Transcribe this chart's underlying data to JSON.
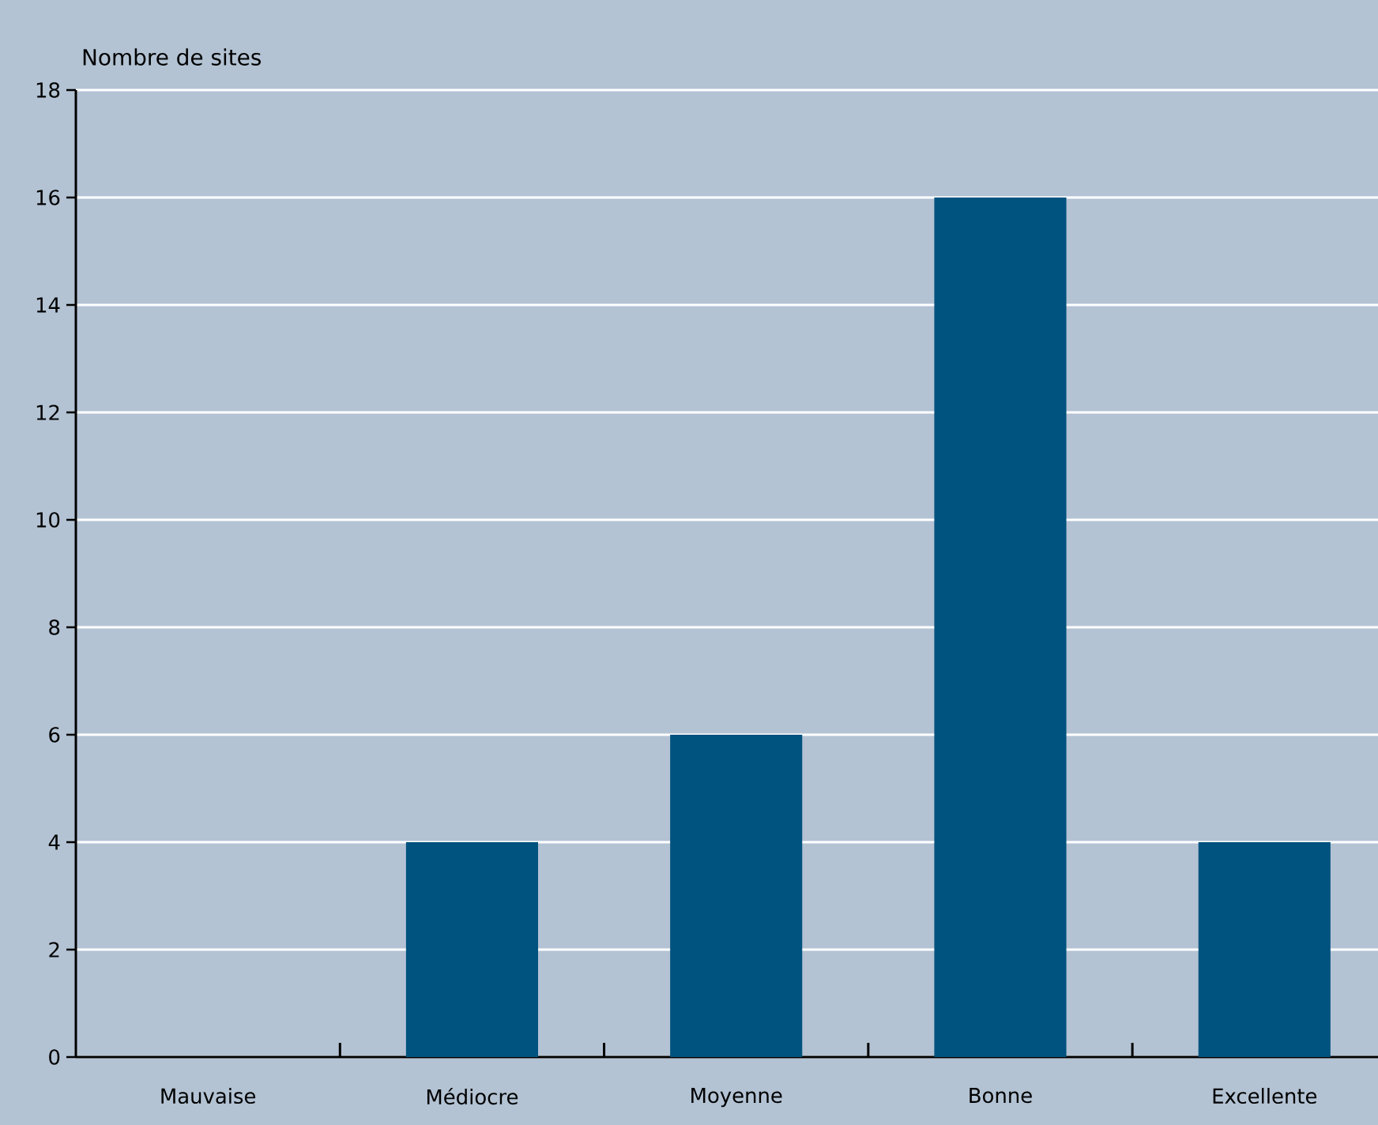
{
  "chart_data": {
    "type": "bar",
    "ylabel": "Nombre de sites",
    "categories": [
      "Mauvaise",
      "Médiocre",
      "Moyenne",
      "Bonne",
      "Excellente"
    ],
    "values": [
      0,
      4,
      6,
      16,
      4
    ],
    "color": "#00527f",
    "ylim": [
      0,
      18
    ],
    "yticks": [
      0,
      2,
      4,
      6,
      8,
      10,
      12,
      14,
      16,
      18
    ],
    "grid": "y"
  }
}
